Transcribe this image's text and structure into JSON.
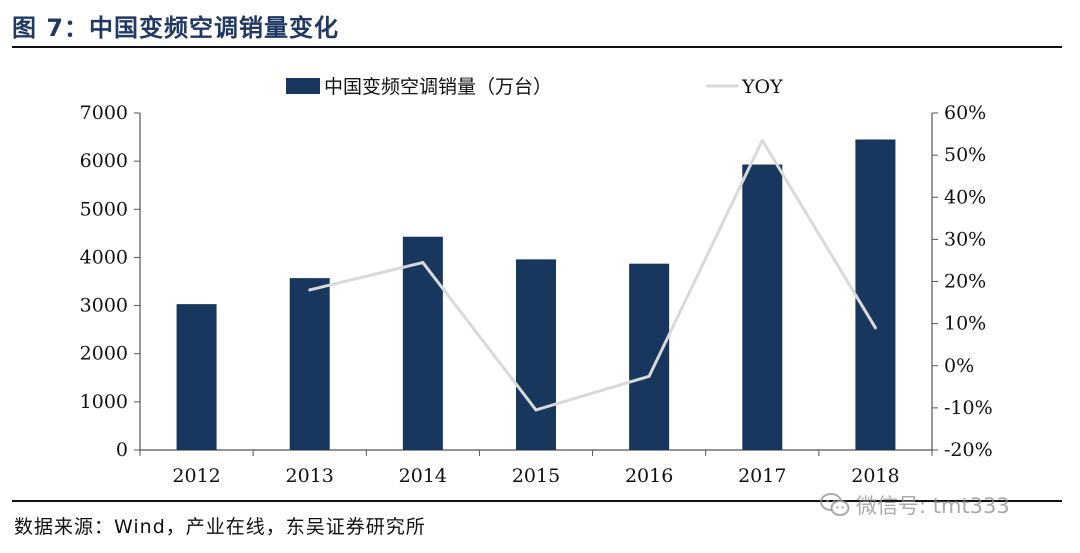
{
  "figure": {
    "title": "图 7：中国变频空调销量变化",
    "source": "数据来源：Wind，产业在线，东吴证券研究所",
    "watermark": "微信号: tmt333"
  },
  "colors": {
    "bar": "#17375e",
    "line": "#d9d9d9",
    "axis": "#555555",
    "title": "#1f3864"
  },
  "chart_data": {
    "type": "bar",
    "title": "",
    "categories": [
      "2012",
      "2013",
      "2014",
      "2015",
      "2016",
      "2017",
      "2018"
    ],
    "series": [
      {
        "name": "中国变频空调销量（万台）",
        "kind": "bar",
        "axis": "left",
        "values": [
          3030,
          3570,
          4430,
          3960,
          3870,
          5930,
          6450
        ]
      },
      {
        "name": "YOY",
        "kind": "line",
        "axis": "right",
        "values": [
          null,
          18,
          24.5,
          -10.5,
          -2.5,
          53.5,
          9
        ]
      }
    ],
    "ylim_left": [
      0,
      7000
    ],
    "yticks_left": [
      "0",
      "1000",
      "2000",
      "3000",
      "4000",
      "5000",
      "6000",
      "7000"
    ],
    "ylim_right": [
      -20,
      60
    ],
    "yticks_right": [
      "-20%",
      "-10%",
      "0%",
      "10%",
      "20%",
      "30%",
      "40%",
      "50%",
      "60%"
    ],
    "legend_position": "top-center",
    "grid": false
  }
}
